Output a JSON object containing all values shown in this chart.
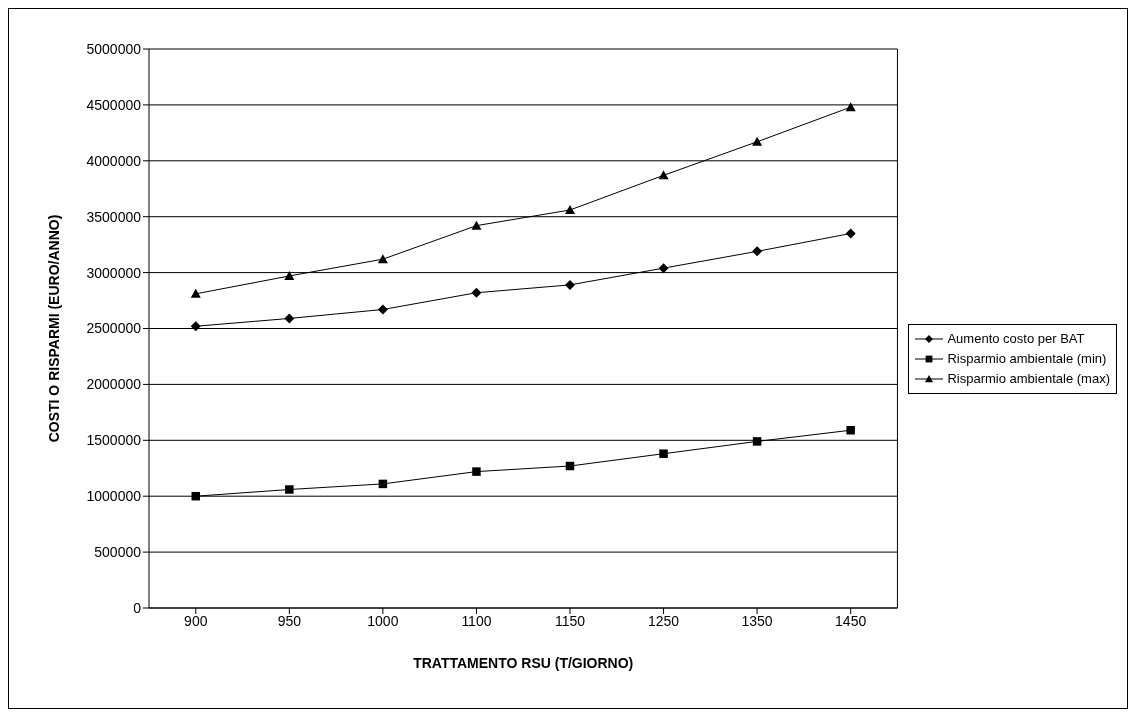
{
  "chart_data": {
    "type": "line",
    "xlabel": "TRATTAMENTO RSU (T/GIORNO)",
    "ylabel": "COSTI  O RISPARMI (EURO/ANNO)",
    "categories": [
      "900",
      "950",
      "1000",
      "1100",
      "1150",
      "1250",
      "1350",
      "1450"
    ],
    "series": [
      {
        "name": "Aumento costo per BAT",
        "color": "#000000",
        "marker": "diamond",
        "values": [
          2520000,
          2590000,
          2670000,
          2820000,
          2890000,
          3040000,
          3190000,
          3350000
        ]
      },
      {
        "name": "Risparmio ambientale (min)",
        "color": "#000000",
        "marker": "square",
        "values": [
          1000000,
          1060000,
          1110000,
          1220000,
          1270000,
          1380000,
          1490000,
          1590000
        ]
      },
      {
        "name": "Risparmio ambientale (max)",
        "color": "#000000",
        "marker": "triangle",
        "values": [
          2810000,
          2970000,
          3120000,
          3420000,
          3560000,
          3870000,
          4170000,
          4480000
        ]
      }
    ],
    "ylim": [
      0,
      5000000
    ],
    "yticks": [
      0,
      500000,
      1000000,
      1500000,
      2000000,
      2500000,
      3000000,
      3500000,
      4000000,
      4500000,
      5000000
    ],
    "grid": "y",
    "legend": "right",
    "line_style": "solid"
  }
}
